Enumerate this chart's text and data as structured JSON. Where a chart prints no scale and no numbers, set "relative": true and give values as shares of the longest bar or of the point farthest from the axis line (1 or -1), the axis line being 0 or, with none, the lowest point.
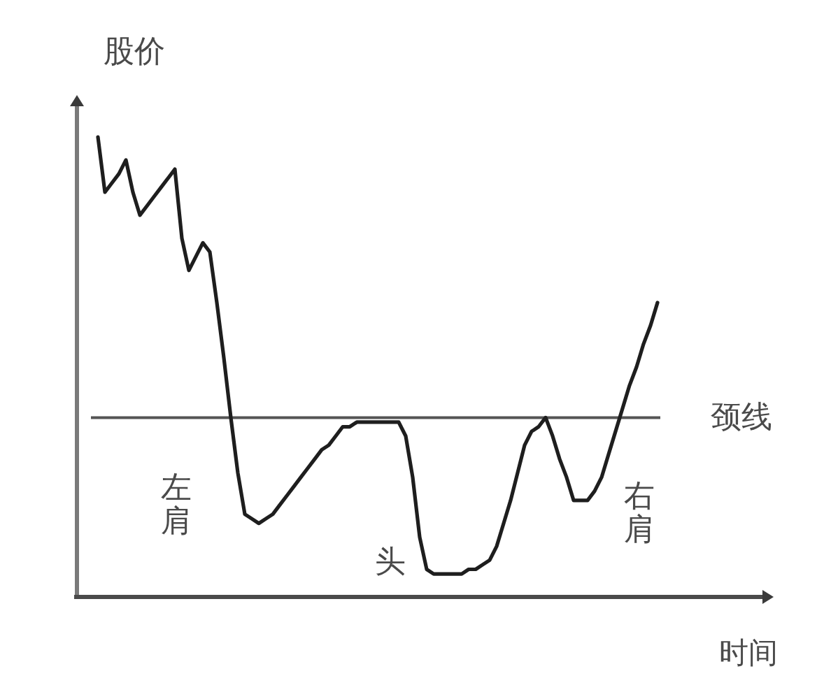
{
  "chart_data": {
    "type": "line",
    "xlabel": "时间",
    "ylabel": "股价",
    "relative": true,
    "color": "#1e1e1e",
    "categories": [
      null,
      null,
      null,
      null,
      null,
      null,
      null,
      null,
      null,
      null,
      null,
      null,
      null,
      null,
      null,
      null,
      null,
      null,
      null,
      null,
      null,
      null,
      null,
      null,
      null,
      null,
      null,
      null,
      null,
      null,
      null,
      null,
      null,
      null,
      null,
      null,
      null,
      null,
      null,
      null,
      null,
      null,
      null,
      null,
      null,
      null,
      null,
      null,
      null,
      null,
      null,
      null,
      null,
      null,
      null,
      null,
      null,
      null,
      null,
      null,
      null,
      null,
      null,
      null,
      null,
      null,
      null,
      null,
      null,
      null,
      null,
      null,
      null,
      null,
      null,
      null,
      null,
      null,
      null,
      null,
      null
    ],
    "values": [
      1,
      0.88,
      0.9,
      0.92,
      0.95,
      0.88,
      0.83,
      0.85,
      0.87,
      0.89,
      0.91,
      0.93,
      0.78,
      0.71,
      0.74,
      0.77,
      0.75,
      0.64,
      0.52,
      0.39,
      0.27,
      0.18,
      0.17,
      0.16,
      0.17,
      0.18,
      0.2,
      0.22,
      0.24,
      0.26,
      0.28,
      0.3,
      0.32,
      0.33,
      0.35,
      0.37,
      0.37,
      0.38,
      0.38,
      0.38,
      0.38,
      0.38,
      0.38,
      0.38,
      0.35,
      0.26,
      0.13,
      0.06,
      0.05,
      0.05,
      0.05,
      0.05,
      0.05,
      0.06,
      0.06,
      0.07,
      0.08,
      0.11,
      0.16,
      0.21,
      0.27,
      0.33,
      0.36,
      0.37,
      0.39,
      0.35,
      0.3,
      0.26,
      0.21,
      0.21,
      0.21,
      0.23,
      0.26,
      0.31,
      0.36,
      0.41,
      0.46,
      0.5,
      0.55,
      0.59,
      0.64
    ],
    "ref_lines": [
      {
        "axis": "y",
        "value": 0.39,
        "label": "颈线",
        "color": "#555555"
      }
    ],
    "annotations": [
      "左肩",
      "头",
      "右肩"
    ]
  }
}
